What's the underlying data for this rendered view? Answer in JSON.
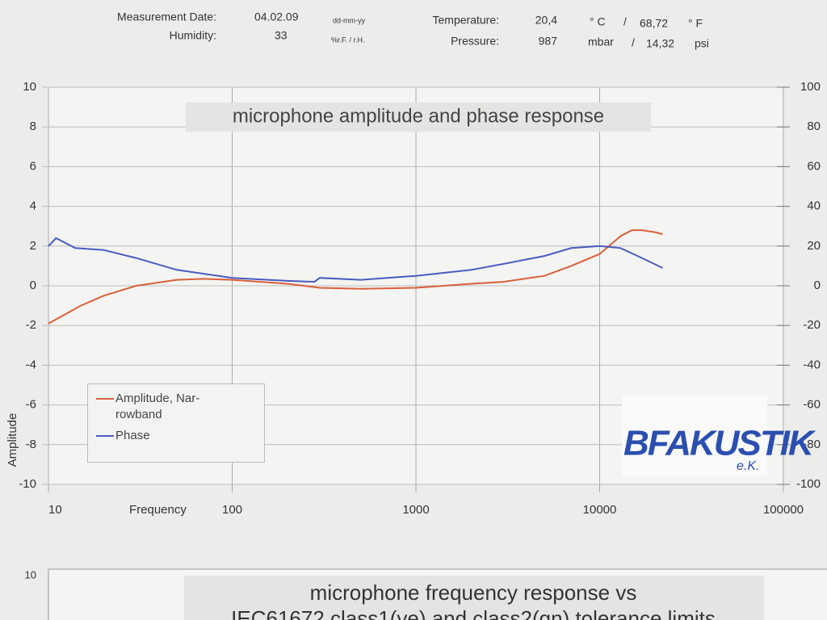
{
  "header": {
    "date_label": "Measurement Date:",
    "date": "04.02.09",
    "date_format": "dd-mm-yy",
    "temp_label": "Temperature:",
    "temp_c": "20,4",
    "unit_c": "° C",
    "sep1": "/",
    "temp_f": "68,72",
    "unit_f": "° F",
    "humidity_label": "Humidity:",
    "humidity": "33",
    "humidity_unit": "%r.F. / r.H.",
    "pressure_label": "Pressure:",
    "pressure": "987",
    "pressure_unit": "mbar",
    "sep2": "/",
    "pressure_psi": "14,32",
    "psi_unit": "psi"
  },
  "chart_data": [
    {
      "type": "line",
      "title": "microphone amplitude and phase response",
      "xlabel": "Frequency",
      "ylabel": "Amplitude",
      "xscale": "log",
      "xlim": [
        10,
        100000
      ],
      "xticks": [
        10,
        100,
        1000,
        10000,
        100000
      ],
      "ylim": [
        -10,
        10
      ],
      "yticks": [
        -10,
        -8,
        -6,
        -4,
        -2,
        0,
        2,
        4,
        6,
        8,
        10
      ],
      "y2lim": [
        -100,
        100
      ],
      "y2ticks": [
        -100,
        -80,
        -60,
        -40,
        -20,
        0,
        20,
        40,
        60,
        80,
        100
      ],
      "grid": true,
      "legend": "lower left",
      "logo": "BFAKUSTIK",
      "logo_suffix": "e.K.",
      "series": [
        {
          "name": "Amplitude, Nar-rowband",
          "color": "#d9603b",
          "x": [
            10,
            12,
            15,
            20,
            30,
            50,
            70,
            100,
            200,
            300,
            500,
            1000,
            2000,
            3000,
            5000,
            7000,
            10000,
            13000,
            15000,
            17000,
            20000,
            22000
          ],
          "values": [
            -1.9,
            -1.5,
            -1.0,
            -0.5,
            0.0,
            0.3,
            0.35,
            0.3,
            0.1,
            -0.1,
            -0.15,
            -0.1,
            0.1,
            0.2,
            0.5,
            1.0,
            1.6,
            2.5,
            2.8,
            2.8,
            2.7,
            2.6
          ]
        },
        {
          "name": "Phase",
          "color": "#4a5bbf",
          "axis": "y2",
          "x": [
            10,
            11,
            14,
            20,
            30,
            50,
            100,
            200,
            280,
            300,
            500,
            1000,
            2000,
            3000,
            5000,
            7000,
            10000,
            13000,
            17000,
            22000
          ],
          "values": [
            20,
            24,
            19,
            18,
            14,
            8,
            4,
            2.5,
            2,
            4,
            3,
            5,
            8,
            11,
            15,
            19,
            20,
            19,
            14,
            9
          ]
        }
      ]
    },
    {
      "type": "line",
      "title": "microphone frequency response vs",
      "subtitle": "IEC61672 class1(ye) and class2(gn) tolerance limits",
      "yticks": [
        10
      ]
    }
  ]
}
